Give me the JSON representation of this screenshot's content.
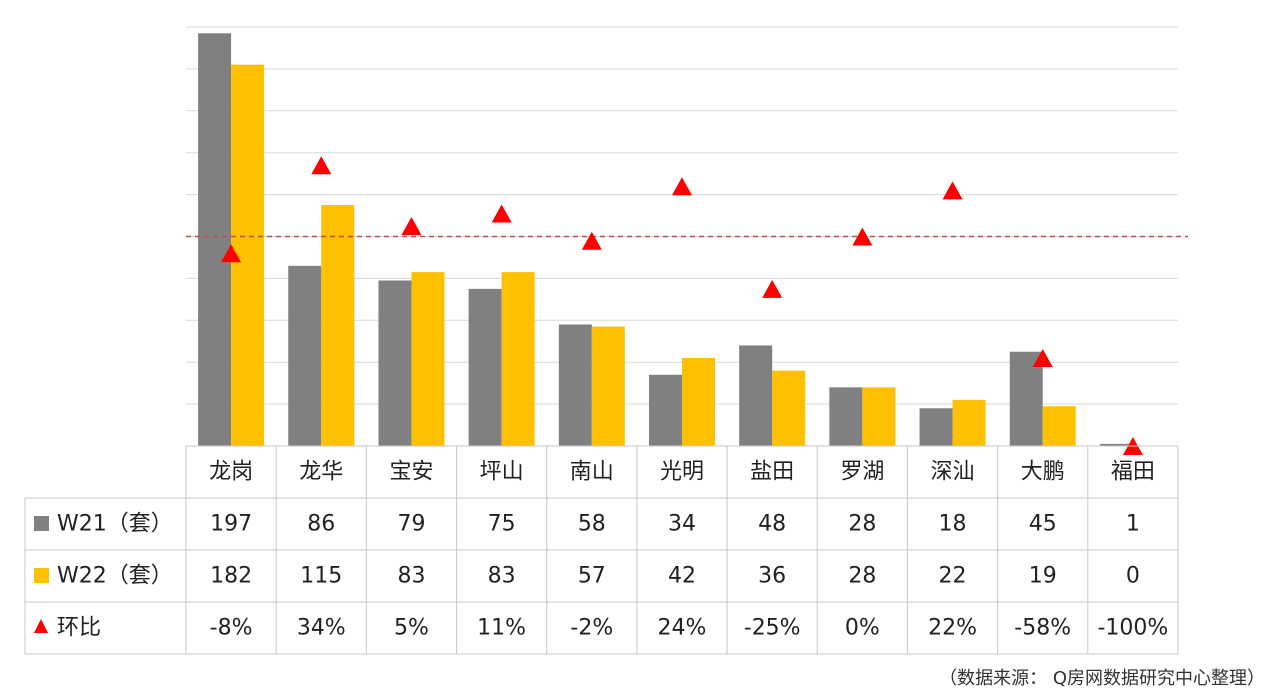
{
  "chart_data": {
    "type": "bar",
    "categories": [
      "龙岗",
      "龙华",
      "宝安",
      "坪山",
      "南山",
      "光明",
      "盐田",
      "罗湖",
      "深汕",
      "大鹏",
      "福田"
    ],
    "series": [
      {
        "name": "W21（套）",
        "kind": "bar",
        "color": "#808080",
        "values": [
          197,
          86,
          79,
          75,
          58,
          34,
          48,
          28,
          18,
          45,
          1
        ]
      },
      {
        "name": "W22（套）",
        "kind": "bar",
        "color": "#FFC000",
        "values": [
          182,
          115,
          83,
          83,
          57,
          42,
          36,
          28,
          22,
          19,
          0
        ]
      },
      {
        "name": "环比",
        "kind": "marker",
        "color": "#FF0000",
        "values": [
          -8,
          34,
          5,
          11,
          -2,
          24,
          -25,
          0,
          22,
          -58,
          -100
        ]
      }
    ],
    "row_values": [
      [
        "197",
        "86",
        "79",
        "75",
        "58",
        "34",
        "48",
        "28",
        "18",
        "45",
        "1"
      ],
      [
        "182",
        "115",
        "83",
        "83",
        "57",
        "42",
        "36",
        "28",
        "22",
        "19",
        "0"
      ],
      [
        "-8%",
        "34%",
        "5%",
        "11%",
        "-2%",
        "24%",
        "-25%",
        "0%",
        "22%",
        "-58%",
        "-100%"
      ]
    ],
    "bar_ylim": [
      0,
      200
    ],
    "ratio_ylim": [
      -100,
      100
    ],
    "reference_line": 0,
    "grid": true
  },
  "source_note": "（数据来源：  Q房网数据研究中心整理）"
}
